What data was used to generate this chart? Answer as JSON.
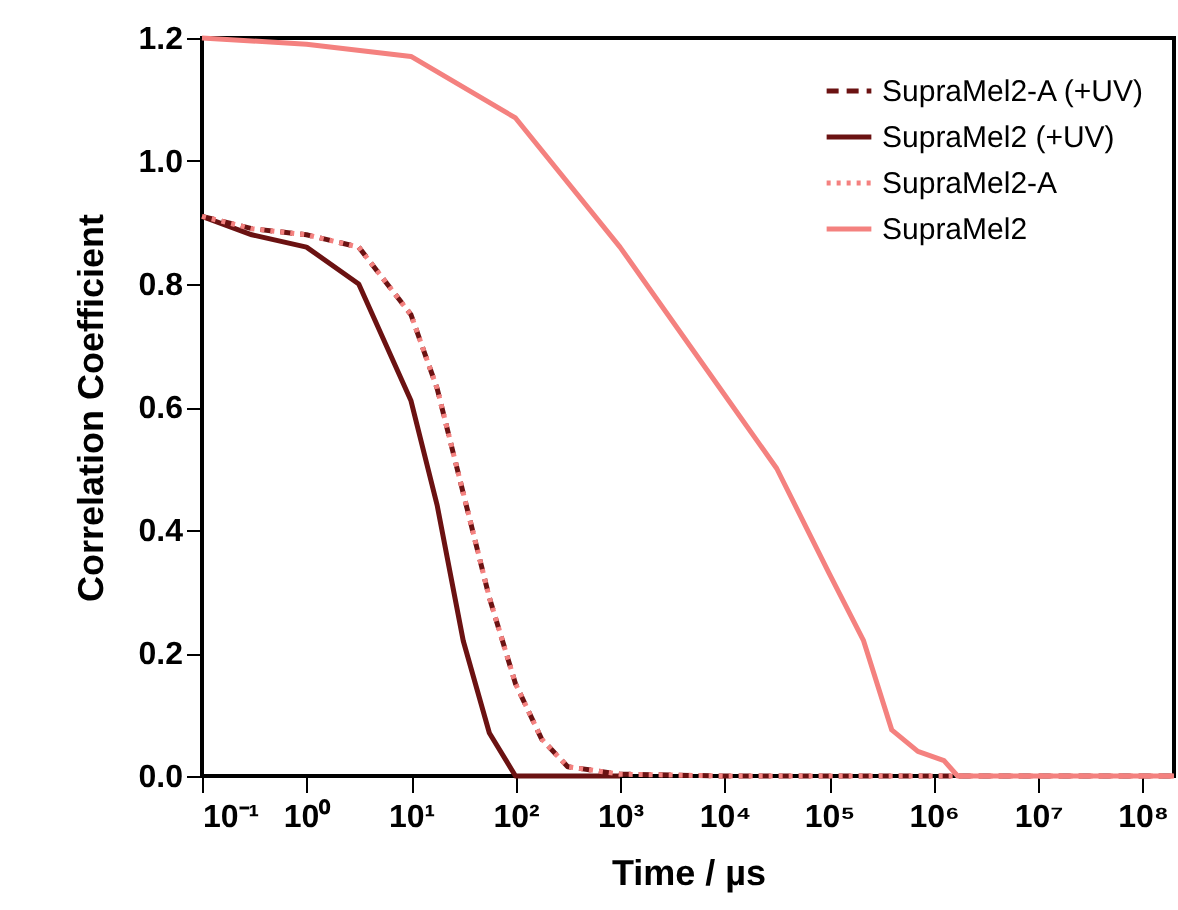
{
  "chart_data": {
    "type": "line",
    "xlabel": "Time / µs",
    "ylabel": "Correlation Coefficient",
    "log": "x",
    "xlim": [
      0.1,
      200000000
    ],
    "ylim": [
      0,
      1.2
    ],
    "xticks": [
      {
        "value": 0.1,
        "label": "10⁻¹"
      },
      {
        "value": 1,
        "label": "10⁰"
      },
      {
        "value": 10,
        "label": "10¹"
      },
      {
        "value": 100,
        "label": "10²"
      },
      {
        "value": 1000,
        "label": "10³"
      },
      {
        "value": 10000,
        "label": "10⁴"
      },
      {
        "value": 100000,
        "label": "10⁵"
      },
      {
        "value": 1000000,
        "label": "10⁶"
      },
      {
        "value": 10000000,
        "label": "10⁷"
      },
      {
        "value": 100000000,
        "label": "10⁸"
      }
    ],
    "yticks": [
      {
        "value": 0,
        "label": "0.0"
      },
      {
        "value": 0.2,
        "label": "0.2"
      },
      {
        "value": 0.4,
        "label": "0.4"
      },
      {
        "value": 0.6,
        "label": "0.6"
      },
      {
        "value": 0.8,
        "label": "0.8"
      },
      {
        "value": 1,
        "label": "1.0"
      },
      {
        "value": 1.2,
        "label": "1.2"
      }
    ],
    "grid": false,
    "legend": "top right",
    "series": [
      {
        "name": "SupraMel2-A (+UV)",
        "color": "#6b1212",
        "line_style": "dashed",
        "x": [
          0.1,
          0.3,
          1,
          3.16,
          10,
          17.8,
          31.6,
          56.2,
          100,
          178,
          316,
          1000,
          10000,
          100000,
          1000000,
          200000000
        ],
        "values": [
          0.91,
          0.89,
          0.88,
          0.86,
          0.75,
          0.63,
          0.46,
          0.29,
          0.15,
          0.06,
          0.015,
          0.003,
          0.0,
          0.0,
          0.0,
          0.0
        ]
      },
      {
        "name": "SupraMel2 (+UV)",
        "color": "#6b1212",
        "line_style": "solid",
        "x": [
          0.1,
          0.3,
          1,
          3.16,
          10,
          17.8,
          31.6,
          56.2,
          100,
          200,
          1000
        ],
        "values": [
          0.91,
          0.88,
          0.86,
          0.8,
          0.61,
          0.44,
          0.22,
          0.07,
          0.0,
          0.0,
          0.0
        ]
      },
      {
        "name": "SupraMel2-A",
        "color": "#f4817f",
        "line_style": "dotted",
        "x": [
          0.1,
          0.3,
          1,
          3.16,
          10,
          17.8,
          31.6,
          56.2,
          100,
          178,
          316,
          1000,
          10000,
          100000,
          1000000,
          200000000
        ],
        "values": [
          0.91,
          0.89,
          0.88,
          0.86,
          0.75,
          0.63,
          0.46,
          0.29,
          0.15,
          0.06,
          0.015,
          0.003,
          0.0,
          0.0,
          0.0,
          0.0
        ]
      },
      {
        "name": "SupraMel2",
        "color": "#f4817f",
        "line_style": "solid",
        "x": [
          0.1,
          1,
          10,
          100,
          1000,
          10000,
          31600,
          100000,
          214000,
          398000,
          708000,
          1260000,
          1700000,
          10000000,
          200000000
        ],
        "values": [
          1.2,
          1.19,
          1.17,
          1.07,
          0.86,
          0.62,
          0.5,
          0.33,
          0.22,
          0.075,
          0.04,
          0.025,
          0.0,
          0.0,
          0.0
        ]
      }
    ]
  }
}
